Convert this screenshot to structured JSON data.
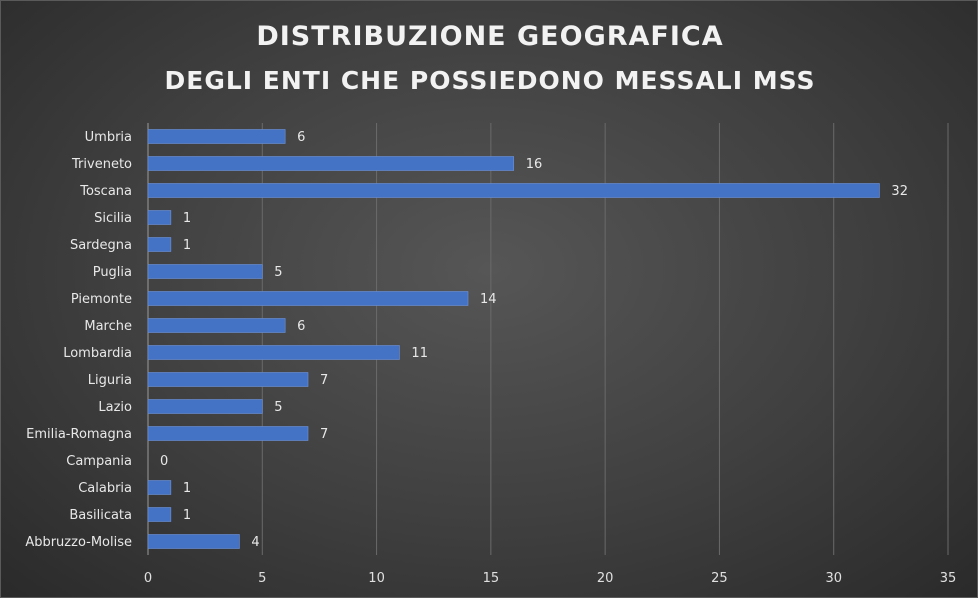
{
  "colors": {
    "bar": "#4472c4",
    "bar_edge": "#6f93d6",
    "grid": "#6a6a6a",
    "text": "#e8e8e8"
  },
  "chart_data": {
    "type": "bar",
    "orientation": "horizontal",
    "title_line1": "DISTRIBUZIONE GEOGRAFICA",
    "title_line2": "DEGLI ENTI CHE POSSIEDONO MESSALI MSS",
    "categories": [
      "Umbria",
      "Triveneto",
      "Toscana",
      "Sicilia",
      "Sardegna",
      "Puglia",
      "Piemonte",
      "Marche",
      "Lombardia",
      "Liguria",
      "Lazio",
      "Emilia-Romagna",
      "Campania",
      "Calabria",
      "Basilicata",
      "Abbruzzo-Molise"
    ],
    "values": [
      6,
      16,
      32,
      1,
      1,
      5,
      14,
      6,
      11,
      7,
      5,
      7,
      0,
      1,
      1,
      4
    ],
    "xlim": [
      0,
      35
    ],
    "xticks": [
      0,
      5,
      10,
      15,
      20,
      25,
      30,
      35
    ],
    "grid": true,
    "data_labels": true,
    "xlabel": "",
    "ylabel": ""
  }
}
